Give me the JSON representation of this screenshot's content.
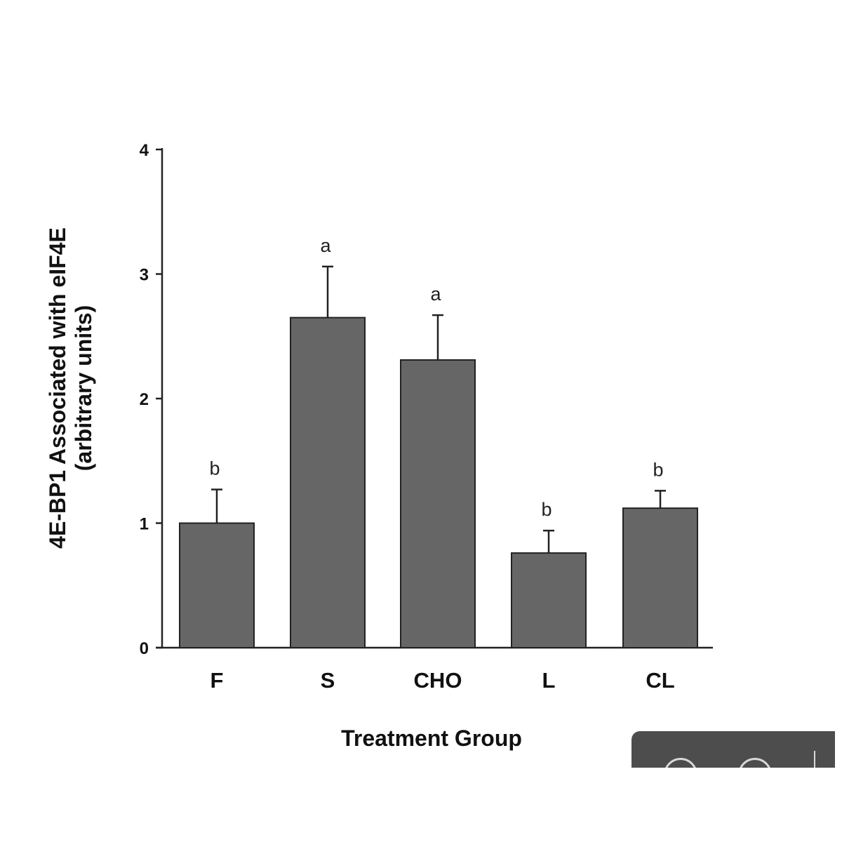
{
  "chart_data": {
    "type": "bar",
    "categories": [
      "F",
      "S",
      "CHO",
      "L",
      "CL"
    ],
    "values": [
      1.0,
      2.65,
      2.31,
      0.76,
      1.12
    ],
    "errors": [
      0.27,
      0.41,
      0.36,
      0.18,
      0.14
    ],
    "significance_letters": [
      "b",
      "a",
      "a",
      "b",
      "b"
    ],
    "xlabel": "Treatment Group",
    "ylabel_line1": "4E-BP1 Associated with eIF4E",
    "ylabel_line2": "(arbitrary units)",
    "ylim": [
      0,
      4
    ],
    "yticks": [
      "0",
      "1",
      "2",
      "3",
      "4"
    ],
    "bar_color": "#666666",
    "grid": false,
    "legend": "none"
  },
  "colors": {
    "bar": "#666666",
    "axis": "#222222",
    "overlay": "#4d4d4d"
  },
  "viewer_controls": {
    "icons": [
      "zoom-out-icon",
      "zoom-in-icon"
    ]
  }
}
